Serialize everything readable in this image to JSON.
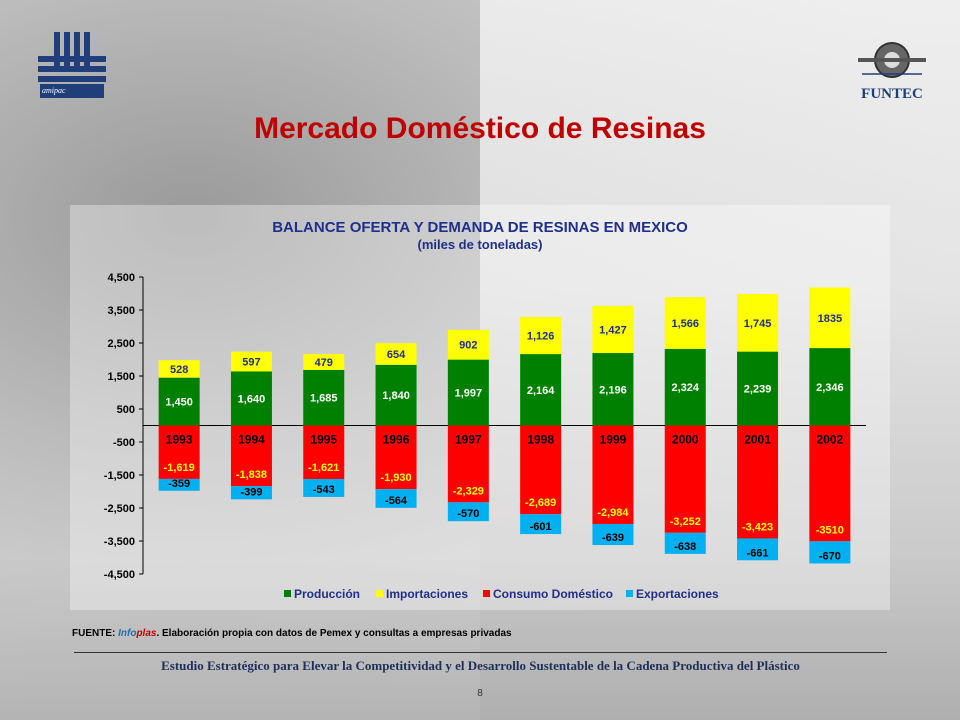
{
  "slide": {
    "title": "Mercado Doméstico de Resinas",
    "logo_left_text": "amipac",
    "logo_right_text": "FUNTEC",
    "source_prefix": "FUENTE: ",
    "source_brand_1": "Info",
    "source_brand_2": "plas",
    "source_rest": ". Elaboración propia con datos de Pemex y consultas a empresas privadas",
    "footer": "Estudio Estratégico para Elevar la Competitividad y el Desarrollo Sustentable de la Cadena Productiva del Plástico",
    "page_number": "8"
  },
  "colors": {
    "produccion": "#008000",
    "importaciones": "#ffff00",
    "consumo": "#ff0000",
    "exportaciones": "#00b0f0",
    "title": "#c00000",
    "chart_title": "#1f2f8a"
  },
  "chart_data": {
    "type": "bar",
    "title": "BALANCE OFERTA Y DEMANDA DE RESINAS EN MEXICO",
    "subtitle": "(miles de toneladas)",
    "categories": [
      "1993",
      "1994",
      "1995",
      "1996",
      "1997",
      "1998",
      "1999",
      "2000",
      "2001",
      "2002"
    ],
    "ylim": [
      -4500,
      4500
    ],
    "yticks": [
      "4,500",
      "3,500",
      "2,500",
      "1,500",
      "500",
      "-500",
      "-1,500",
      "-2,500",
      "-3,500",
      "-4,500"
    ],
    "ytick_values": [
      4500,
      3500,
      2500,
      1500,
      500,
      -500,
      -1500,
      -2500,
      -3500,
      -4500
    ],
    "series": [
      {
        "name": "Producción",
        "values": [
          1450,
          1640,
          1685,
          1840,
          1997,
          2164,
          2196,
          2324,
          2239,
          2346
        ],
        "labels": [
          "1,450",
          "1,640",
          "1,685",
          "1,840",
          "1,997",
          "2,164",
          "2,196",
          "2,324",
          "2,239",
          "2,346"
        ]
      },
      {
        "name": "Importaciones",
        "values": [
          528,
          597,
          479,
          654,
          902,
          1126,
          1427,
          1566,
          1745,
          1835
        ],
        "labels": [
          "528",
          "597",
          "479",
          "654",
          "902",
          "1,126",
          "1,427",
          "1,566",
          "1,745",
          "1835"
        ]
      },
      {
        "name": "Consumo Doméstico",
        "values": [
          -1619,
          -1838,
          -1621,
          -1930,
          -2329,
          -2689,
          -2984,
          -3252,
          -3423,
          -3510
        ],
        "labels": [
          "-1,619",
          "-1,838",
          "-1,621",
          "-1,930",
          "-2,329",
          "-2,689",
          "-2,984",
          "-3,252",
          "-3,423",
          "-3510"
        ]
      },
      {
        "name": "Exportaciones",
        "values": [
          -359,
          -399,
          -543,
          -564,
          -570,
          -601,
          -639,
          -638,
          -661,
          -670
        ],
        "labels": [
          "-359",
          "-399",
          "-543",
          "-564",
          "-570",
          "-601",
          "-639",
          "-638",
          "-661",
          "-670"
        ]
      }
    ],
    "legend_position": "bottom"
  }
}
